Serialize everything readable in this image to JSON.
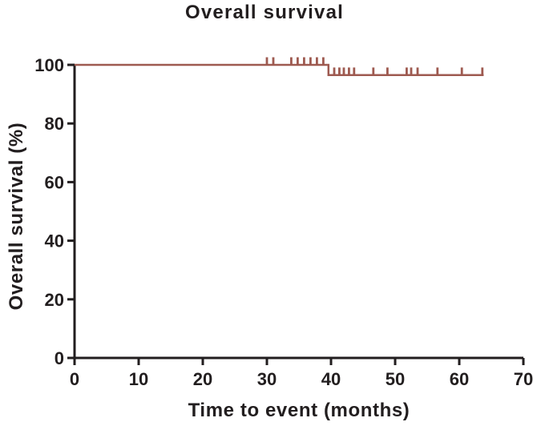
{
  "chart_data": {
    "type": "line",
    "subtype": "kaplan-meier-step",
    "title": "Overall survival",
    "xlabel": "Time to event (months)",
    "ylabel": "Overall survival (%)",
    "xlim": [
      0,
      70
    ],
    "ylim": [
      0,
      100
    ],
    "x_ticks": [
      0,
      10,
      20,
      30,
      40,
      50,
      60,
      70
    ],
    "y_ticks": [
      0,
      20,
      40,
      60,
      80,
      100
    ],
    "grid": false,
    "legend": "none",
    "series": [
      {
        "name": "Overall survival",
        "color": "#9e5a50",
        "step_points": [
          {
            "x": 0,
            "y": 100
          },
          {
            "x": 39.6,
            "y": 100
          },
          {
            "x": 39.6,
            "y": 96.5
          },
          {
            "x": 63.8,
            "y": 96.5
          }
        ],
        "censor_marks": [
          {
            "x": 30.0,
            "y": 100
          },
          {
            "x": 31.0,
            "y": 100
          },
          {
            "x": 33.8,
            "y": 100
          },
          {
            "x": 34.8,
            "y": 100
          },
          {
            "x": 35.8,
            "y": 100
          },
          {
            "x": 36.8,
            "y": 100
          },
          {
            "x": 37.8,
            "y": 100
          },
          {
            "x": 38.8,
            "y": 100
          },
          {
            "x": 40.5,
            "y": 96.5
          },
          {
            "x": 41.3,
            "y": 96.5
          },
          {
            "x": 42.0,
            "y": 96.5
          },
          {
            "x": 42.8,
            "y": 96.5
          },
          {
            "x": 43.6,
            "y": 96.5
          },
          {
            "x": 46.6,
            "y": 96.5
          },
          {
            "x": 48.8,
            "y": 96.5
          },
          {
            "x": 51.8,
            "y": 96.5
          },
          {
            "x": 52.5,
            "y": 96.5
          },
          {
            "x": 53.5,
            "y": 96.5
          },
          {
            "x": 56.6,
            "y": 96.5
          },
          {
            "x": 60.4,
            "y": 96.5
          },
          {
            "x": 63.6,
            "y": 96.5
          }
        ]
      }
    ],
    "colors": {
      "curve": "#9e5a50",
      "axis": "#221e1f",
      "text": "#221e1f",
      "background": "#ffffff"
    }
  }
}
